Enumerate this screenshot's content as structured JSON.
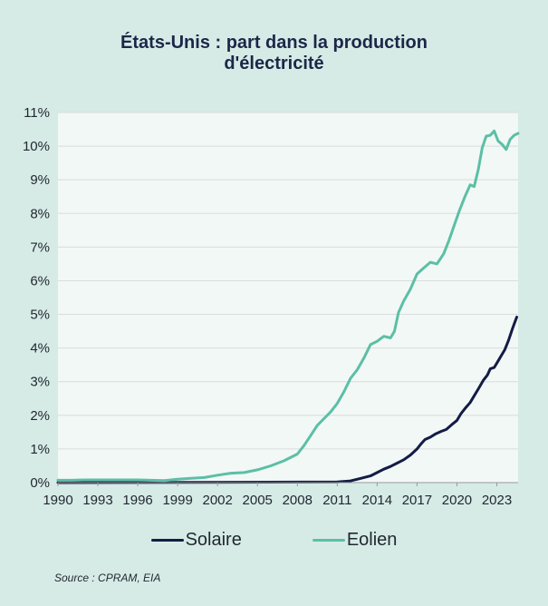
{
  "chart_data": {
    "type": "line",
    "title": [
      "États-Unis : part dans la production",
      "d'électricité"
    ],
    "xlabel": "",
    "ylabel": "",
    "xlim": [
      1990,
      2024.6
    ],
    "ylim": [
      0,
      11
    ],
    "x_ticks": [
      {
        "value": 1990,
        "label": "1990"
      },
      {
        "value": 1993,
        "label": "1993"
      },
      {
        "value": 1996,
        "label": "1996"
      },
      {
        "value": 1999,
        "label": "1999"
      },
      {
        "value": 2002,
        "label": "2002"
      },
      {
        "value": 2005,
        "label": "2005"
      },
      {
        "value": 2008,
        "label": "2008"
      },
      {
        "value": 2011,
        "label": "2011"
      },
      {
        "value": 2014,
        "label": "2014"
      },
      {
        "value": 2017,
        "label": "2017"
      },
      {
        "value": 2020,
        "label": "2020"
      },
      {
        "value": 2023,
        "label": "2023"
      }
    ],
    "y_ticks": [
      {
        "value": 0,
        "label": "0%"
      },
      {
        "value": 1,
        "label": "1%"
      },
      {
        "value": 2,
        "label": "2%"
      },
      {
        "value": 3,
        "label": "3%"
      },
      {
        "value": 4,
        "label": "4%"
      },
      {
        "value": 5,
        "label": "5%"
      },
      {
        "value": 6,
        "label": "6%"
      },
      {
        "value": 7,
        "label": "7%"
      },
      {
        "value": 8,
        "label": "8%"
      },
      {
        "value": 9,
        "label": "9%"
      },
      {
        "value": 10,
        "label": "10%"
      },
      {
        "value": 11,
        "label": "11%"
      }
    ],
    "grid": "horizontal",
    "legend_position": "bottom-center",
    "series": [
      {
        "name": "Solaire",
        "color": "#131c45",
        "points": [
          [
            1990,
            0.0
          ],
          [
            2011,
            0.02
          ],
          [
            2012,
            0.05
          ],
          [
            2012.5,
            0.1
          ],
          [
            2013,
            0.15
          ],
          [
            2013.5,
            0.2
          ],
          [
            2014,
            0.3
          ],
          [
            2014.5,
            0.4
          ],
          [
            2015,
            0.48
          ],
          [
            2015.5,
            0.58
          ],
          [
            2016,
            0.68
          ],
          [
            2016.5,
            0.82
          ],
          [
            2017,
            1.0
          ],
          [
            2017.3,
            1.15
          ],
          [
            2017.6,
            1.28
          ],
          [
            2018,
            1.35
          ],
          [
            2018.4,
            1.45
          ],
          [
            2018.8,
            1.52
          ],
          [
            2019.2,
            1.58
          ],
          [
            2019.6,
            1.72
          ],
          [
            2020,
            1.85
          ],
          [
            2020.3,
            2.05
          ],
          [
            2020.6,
            2.2
          ],
          [
            2021,
            2.38
          ],
          [
            2021.3,
            2.58
          ],
          [
            2021.6,
            2.78
          ],
          [
            2022,
            3.05
          ],
          [
            2022.3,
            3.2
          ],
          [
            2022.5,
            3.38
          ],
          [
            2022.8,
            3.42
          ],
          [
            2023,
            3.55
          ],
          [
            2023.3,
            3.75
          ],
          [
            2023.6,
            3.95
          ],
          [
            2023.9,
            4.25
          ],
          [
            2024.2,
            4.6
          ],
          [
            2024.5,
            4.92
          ]
        ]
      },
      {
        "name": "Eolien",
        "color": "#5cbfa5",
        "points": [
          [
            1990,
            0.07
          ],
          [
            1991,
            0.07
          ],
          [
            1992,
            0.08
          ],
          [
            1993,
            0.08
          ],
          [
            1994,
            0.08
          ],
          [
            1995,
            0.08
          ],
          [
            1996,
            0.08
          ],
          [
            1997,
            0.07
          ],
          [
            1998,
            0.06
          ],
          [
            1999,
            0.1
          ],
          [
            2000,
            0.13
          ],
          [
            2001,
            0.15
          ],
          [
            2002,
            0.22
          ],
          [
            2003,
            0.28
          ],
          [
            2004,
            0.3
          ],
          [
            2005,
            0.38
          ],
          [
            2006,
            0.5
          ],
          [
            2007,
            0.65
          ],
          [
            2008,
            0.85
          ],
          [
            2008.5,
            1.1
          ],
          [
            2009,
            1.4
          ],
          [
            2009.5,
            1.7
          ],
          [
            2010,
            1.9
          ],
          [
            2010.5,
            2.1
          ],
          [
            2011,
            2.35
          ],
          [
            2011.5,
            2.7
          ],
          [
            2012,
            3.1
          ],
          [
            2012.5,
            3.35
          ],
          [
            2013,
            3.7
          ],
          [
            2013.5,
            4.1
          ],
          [
            2014,
            4.2
          ],
          [
            2014.5,
            4.35
          ],
          [
            2015,
            4.3
          ],
          [
            2015.3,
            4.5
          ],
          [
            2015.6,
            5.05
          ],
          [
            2016,
            5.4
          ],
          [
            2016.5,
            5.75
          ],
          [
            2017,
            6.2
          ],
          [
            2017.5,
            6.38
          ],
          [
            2018,
            6.55
          ],
          [
            2018.5,
            6.5
          ],
          [
            2019,
            6.8
          ],
          [
            2019.4,
            7.2
          ],
          [
            2019.8,
            7.65
          ],
          [
            2020.2,
            8.1
          ],
          [
            2020.6,
            8.5
          ],
          [
            2021,
            8.85
          ],
          [
            2021.3,
            8.8
          ],
          [
            2021.6,
            9.3
          ],
          [
            2021.9,
            9.95
          ],
          [
            2022.2,
            10.3
          ],
          [
            2022.5,
            10.32
          ],
          [
            2022.8,
            10.45
          ],
          [
            2023.1,
            10.15
          ],
          [
            2023.4,
            10.05
          ],
          [
            2023.7,
            9.9
          ],
          [
            2024,
            10.2
          ],
          [
            2024.3,
            10.32
          ],
          [
            2024.6,
            10.38
          ]
        ]
      }
    ]
  },
  "legend": {
    "items": [
      {
        "label": "Solaire",
        "color": "#131c45"
      },
      {
        "label": "Eolien",
        "color": "#5cbfa5"
      }
    ]
  },
  "footer": {
    "source": "Source : CPRAM, EIA"
  },
  "colors": {
    "background": "#d6ebe6",
    "plot_area": "#f2f8f6",
    "grid": "#d9dcdc",
    "axis": "#999999",
    "title": "#1c2748"
  }
}
